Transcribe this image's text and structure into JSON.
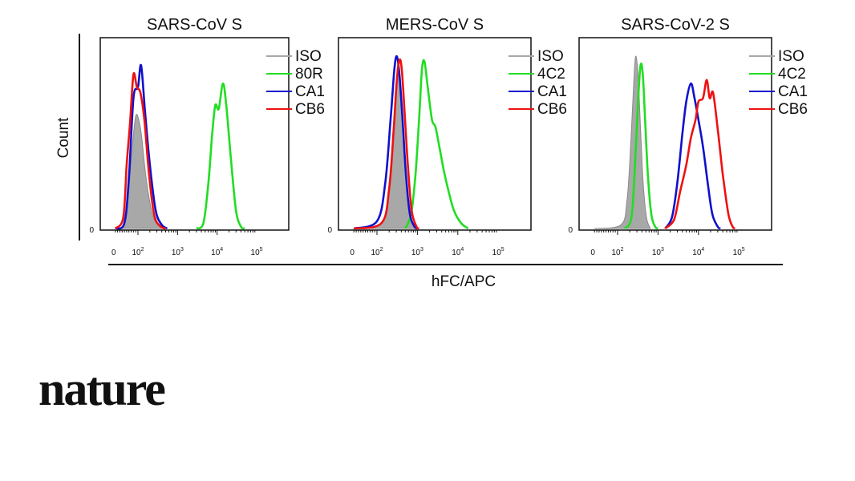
{
  "brand": {
    "text": "nature"
  },
  "chart_data": {
    "type": "area",
    "xlabel": "hFC/APC",
    "ylabel": "Count",
    "x_scale": "biexponential (0 and log 10^2 to 10^5)",
    "x_ticks": [
      "0",
      "10^2",
      "10^3",
      "10^4",
      "10^5"
    ],
    "y_ticks": [
      "0"
    ],
    "legend_position": "top-right",
    "colors": {
      "ISO": "#a8a8a8",
      "green": "#22dd22",
      "CA1": "#1010cc",
      "CB6": "#ee1111"
    },
    "panels": [
      {
        "title": "SARS-CoV S",
        "series": [
          {
            "name": "ISO",
            "color": "#a8a8a8",
            "fill": true,
            "points": [
              [
                0,
                0
              ],
              [
                35,
                0.02
              ],
              [
                55,
                0.15
              ],
              [
                75,
                0.45
              ],
              [
                90,
                0.62
              ],
              [
                105,
                0.6
              ],
              [
                125,
                0.5
              ],
              [
                160,
                0.28
              ],
              [
                230,
                0.08
              ],
              [
                350,
                0.01
              ],
              [
                500,
                0
              ]
            ]
          },
          {
            "name": "80R",
            "color": "#22dd22",
            "fill": false,
            "points": [
              [
                3000,
                0
              ],
              [
                4500,
                0.03
              ],
              [
                6000,
                0.25
              ],
              [
                7500,
                0.52
              ],
              [
                9000,
                0.68
              ],
              [
                11000,
                0.66
              ],
              [
                14000,
                0.8
              ],
              [
                17000,
                0.68
              ],
              [
                22000,
                0.4
              ],
              [
                30000,
                0.1
              ],
              [
                40000,
                0.01
              ],
              [
                50000,
                0
              ]
            ]
          },
          {
            "name": "CA1",
            "color": "#1010cc",
            "fill": false,
            "points": [
              [
                0,
                0
              ],
              [
                40,
                0.03
              ],
              [
                60,
                0.28
              ],
              [
                80,
                0.72
              ],
              [
                100,
                0.78
              ],
              [
                120,
                0.9
              ],
              [
                150,
                0.65
              ],
              [
                200,
                0.35
              ],
              [
                280,
                0.1
              ],
              [
                400,
                0.02
              ],
              [
                550,
                0
              ]
            ]
          },
          {
            "name": "CB6",
            "color": "#ee1111",
            "fill": false,
            "points": [
              [
                0,
                0
              ],
              [
                35,
                0.06
              ],
              [
                50,
                0.35
              ],
              [
                65,
                0.58
              ],
              [
                80,
                0.85
              ],
              [
                95,
                0.78
              ],
              [
                115,
                0.75
              ],
              [
                145,
                0.6
              ],
              [
                190,
                0.3
              ],
              [
                260,
                0.07
              ],
              [
                380,
                0.01
              ],
              [
                500,
                0
              ]
            ]
          }
        ]
      },
      {
        "title": "MERS-CoV S",
        "series": [
          {
            "name": "ISO",
            "color": "#a8a8a8",
            "fill": true,
            "points": [
              [
                0,
                0
              ],
              [
                120,
                0.02
              ],
              [
                180,
                0.15
              ],
              [
                240,
                0.45
              ],
              [
                290,
                0.7
              ],
              [
                330,
                0.92
              ],
              [
                380,
                0.8
              ],
              [
                450,
                0.55
              ],
              [
                550,
                0.25
              ],
              [
                700,
                0.06
              ],
              [
                900,
                0
              ]
            ]
          },
          {
            "name": "4C2",
            "color": "#22dd22",
            "fill": false,
            "points": [
              [
                500,
                0
              ],
              [
                700,
                0.08
              ],
              [
                900,
                0.3
              ],
              [
                1100,
                0.6
              ],
              [
                1300,
                0.88
              ],
              [
                1500,
                0.92
              ],
              [
                1800,
                0.78
              ],
              [
                2300,
                0.6
              ],
              [
                2800,
                0.56
              ],
              [
                3500,
                0.45
              ],
              [
                4500,
                0.32
              ],
              [
                6000,
                0.2
              ],
              [
                8000,
                0.1
              ],
              [
                12000,
                0.03
              ],
              [
                18000,
                0
              ]
            ]
          },
          {
            "name": "CA1",
            "color": "#1010cc",
            "fill": false,
            "points": [
              [
                0,
                0
              ],
              [
                100,
                0.04
              ],
              [
                160,
                0.25
              ],
              [
                220,
                0.62
              ],
              [
                270,
                0.88
              ],
              [
                310,
                0.95
              ],
              [
                360,
                0.85
              ],
              [
                430,
                0.6
              ],
              [
                520,
                0.3
              ],
              [
                650,
                0.08
              ],
              [
                850,
                0.01
              ],
              [
                1000,
                0
              ]
            ]
          },
          {
            "name": "CB6",
            "color": "#ee1111",
            "fill": false,
            "points": [
              [
                0,
                0
              ],
              [
                130,
                0.03
              ],
              [
                200,
                0.22
              ],
              [
                260,
                0.55
              ],
              [
                310,
                0.82
              ],
              [
                360,
                0.93
              ],
              [
                410,
                0.88
              ],
              [
                480,
                0.65
              ],
              [
                580,
                0.35
              ],
              [
                720,
                0.1
              ],
              [
                950,
                0.01
              ],
              [
                1100,
                0
              ]
            ]
          }
        ]
      },
      {
        "title": "SARS-CoV-2 S",
        "series": [
          {
            "name": "ISO",
            "color": "#a8a8a8",
            "fill": true,
            "points": [
              [
                0,
                0
              ],
              [
                120,
                0.02
              ],
              [
                170,
                0.15
              ],
              [
                210,
                0.45
              ],
              [
                250,
                0.8
              ],
              [
                280,
                0.95
              ],
              [
                320,
                0.85
              ],
              [
                370,
                0.55
              ],
              [
                430,
                0.25
              ],
              [
                520,
                0.06
              ],
              [
                650,
                0
              ]
            ]
          },
          {
            "name": "4C2",
            "color": "#22dd22",
            "fill": false,
            "points": [
              [
                150,
                0
              ],
              [
                220,
                0.06
              ],
              [
                270,
                0.35
              ],
              [
                320,
                0.7
              ],
              [
                370,
                0.9
              ],
              [
                420,
                0.85
              ],
              [
                480,
                0.6
              ],
              [
                560,
                0.3
              ],
              [
                680,
                0.08
              ],
              [
                850,
                0.01
              ],
              [
                1000,
                0
              ]
            ]
          },
          {
            "name": "CA1",
            "color": "#1010cc",
            "fill": false,
            "points": [
              [
                1500,
                0
              ],
              [
                2200,
                0.06
              ],
              [
                3000,
                0.25
              ],
              [
                4000,
                0.52
              ],
              [
                5000,
                0.7
              ],
              [
                6500,
                0.8
              ],
              [
                8000,
                0.72
              ],
              [
                10000,
                0.6
              ],
              [
                13000,
                0.45
              ],
              [
                17000,
                0.25
              ],
              [
                22000,
                0.08
              ],
              [
                30000,
                0.01
              ],
              [
                35000,
                0
              ]
            ]
          },
          {
            "name": "CB6",
            "color": "#ee1111",
            "fill": false,
            "points": [
              [
                1500,
                0
              ],
              [
                2500,
                0.05
              ],
              [
                3500,
                0.2
              ],
              [
                5000,
                0.35
              ],
              [
                6500,
                0.5
              ],
              [
                8500,
                0.6
              ],
              [
                10000,
                0.7
              ],
              [
                13000,
                0.72
              ],
              [
                16000,
                0.82
              ],
              [
                19000,
                0.72
              ],
              [
                23000,
                0.75
              ],
              [
                30000,
                0.55
              ],
              [
                40000,
                0.3
              ],
              [
                55000,
                0.08
              ],
              [
                70000,
                0.01
              ],
              [
                80000,
                0
              ]
            ]
          }
        ]
      }
    ]
  }
}
